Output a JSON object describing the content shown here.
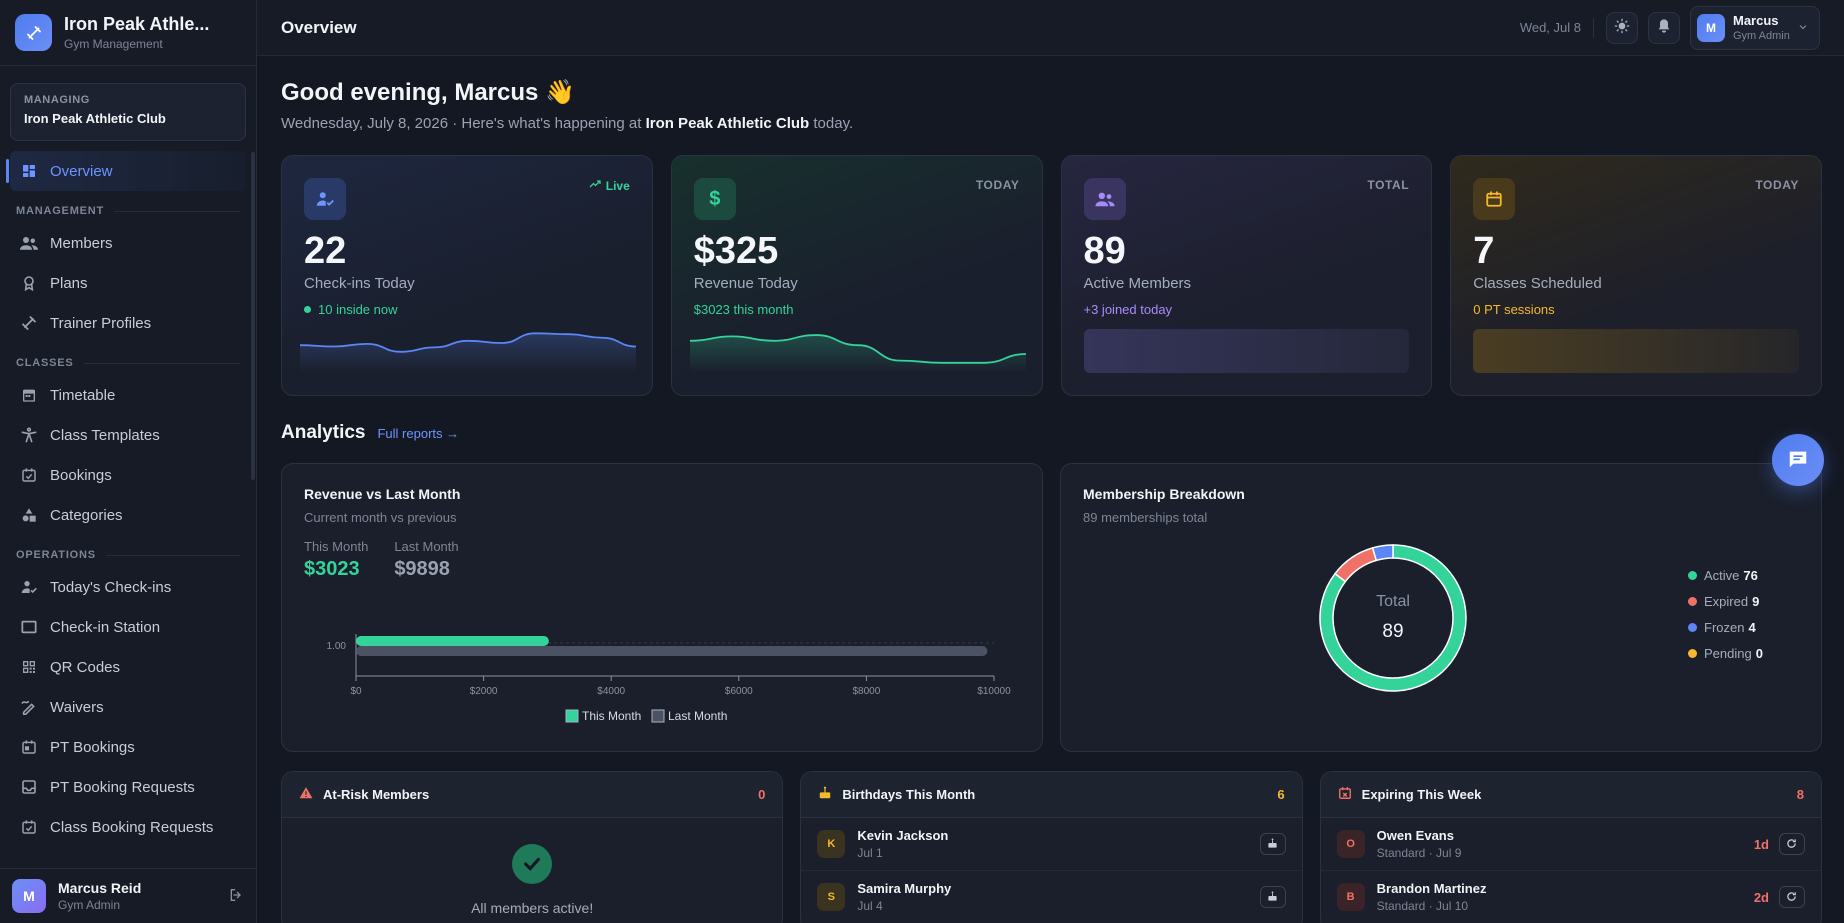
{
  "brand": {
    "name": "Iron Peak Athle...",
    "subtitle": "Gym Management"
  },
  "managing": {
    "label": "MANAGING",
    "name": "Iron Peak Athletic Club"
  },
  "nav": {
    "overview": "Overview",
    "section_management": "MANAGEMENT",
    "members": "Members",
    "plans": "Plans",
    "trainer_profiles": "Trainer Profiles",
    "section_classes": "CLASSES",
    "timetable": "Timetable",
    "class_templates": "Class Templates",
    "bookings": "Bookings",
    "categories": "Categories",
    "section_operations": "OPERATIONS",
    "todays_checkins": "Today's Check-ins",
    "checkin_station": "Check-in Station",
    "qr_codes": "QR Codes",
    "waivers": "Waivers",
    "pt_bookings": "PT Bookings",
    "pt_booking_requests": "PT Booking Requests",
    "class_booking_requests": "Class Booking Requests"
  },
  "sidebar_user": {
    "initial": "M",
    "name": "Marcus Reid",
    "role": "Gym Admin"
  },
  "topbar": {
    "title": "Overview",
    "date": "Wed, Jul 8",
    "user_initial": "M",
    "user_name": "Marcus",
    "user_role": "Gym Admin"
  },
  "greeting": {
    "title": "Good evening, Marcus 👋",
    "sub_prefix": "Wednesday, July 8, 2026 · Here's what's happening at ",
    "club": "Iron Peak Athletic Club",
    "sub_suffix": " today."
  },
  "stats": [
    {
      "tag": "Live",
      "value": "22",
      "label": "Check-ins Today",
      "note": "10 inside now",
      "spark": [
        0.45,
        0.42,
        0.48,
        0.3,
        0.4,
        0.55,
        0.5,
        0.72,
        0.7,
        0.62,
        0.42
      ]
    },
    {
      "tag": "TODAY",
      "value": "$325",
      "label": "Revenue Today",
      "note": "$3023 this month",
      "spark": [
        0.55,
        0.65,
        0.55,
        0.68,
        0.45,
        0.1,
        0.05,
        0.05,
        0.25
      ]
    },
    {
      "tag": "TOTAL",
      "value": "89",
      "label": "Active Members",
      "note": "+3 joined today"
    },
    {
      "tag": "TODAY",
      "value": "7",
      "label": "Classes Scheduled",
      "note": "0 PT sessions"
    }
  ],
  "analytics": {
    "title": "Analytics",
    "link": "Full reports →"
  },
  "revenue_panel": {
    "title": "Revenue vs Last Month",
    "subtitle": "Current month vs previous",
    "this_month_label": "This Month",
    "this_month_value": "$3023",
    "last_month_label": "Last Month",
    "last_month_value": "$9898"
  },
  "membership_panel": {
    "title": "Membership Breakdown",
    "subtitle": "89 memberships total",
    "center_label": "Total",
    "center_value": "89",
    "legend": [
      {
        "label": "Active",
        "value": "76",
        "color": "#34d399"
      },
      {
        "label": "Expired",
        "value": "9",
        "color": "#f07167"
      },
      {
        "label": "Frozen",
        "value": "4",
        "color": "#5b86f5"
      },
      {
        "label": "Pending",
        "value": "0",
        "color": "#f5b82e"
      }
    ]
  },
  "chart_data": [
    {
      "type": "bar",
      "orientation": "horizontal",
      "categories": [
        "1.00"
      ],
      "series": [
        {
          "name": "This Month",
          "values": [
            3023
          ],
          "color": "#34d399"
        },
        {
          "name": "Last Month",
          "values": [
            9898
          ],
          "color": "#4b5263"
        }
      ],
      "xticks": [
        "$0",
        "$2000",
        "$4000",
        "$6000",
        "$8000",
        "$10000"
      ],
      "xlim": [
        0,
        10000
      ],
      "legend": "bottom"
    },
    {
      "type": "pie",
      "donut": true,
      "labels": [
        "Active",
        "Expired",
        "Frozen",
        "Pending"
      ],
      "values": [
        76,
        9,
        4,
        0
      ],
      "colors": [
        "#34d399",
        "#f07167",
        "#5b86f5",
        "#f5b82e"
      ],
      "legend": "right"
    }
  ],
  "at_risk": {
    "title": "At-Risk Members",
    "count": "0",
    "empty_text": "All members active!"
  },
  "birthdays": {
    "title": "Birthdays This Month",
    "count": "6",
    "items": [
      {
        "initial": "K",
        "name": "Kevin Jackson",
        "date": "Jul 1"
      },
      {
        "initial": "S",
        "name": "Samira Murphy",
        "date": "Jul 4"
      }
    ]
  },
  "expiring": {
    "title": "Expiring This Week",
    "count": "8",
    "items": [
      {
        "initial": "O",
        "name": "Owen Evans",
        "detail": "Standard · Jul 9",
        "days": "1d"
      },
      {
        "initial": "B",
        "name": "Brandon Martinez",
        "detail": "Standard · Jul 10",
        "days": "2d"
      }
    ]
  }
}
